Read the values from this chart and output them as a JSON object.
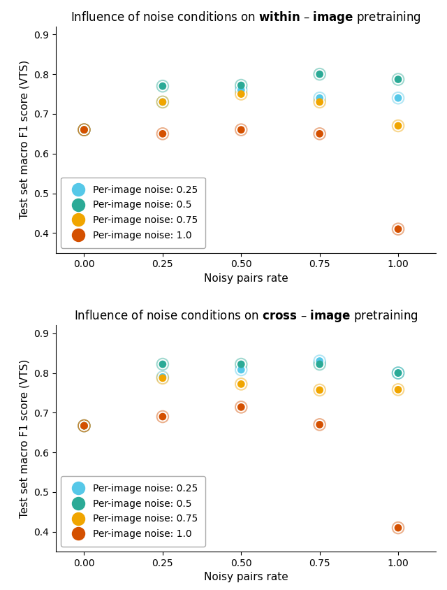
{
  "x": [
    0.0,
    0.25,
    0.5,
    0.75,
    1.0
  ],
  "within_image": {
    "blue": [
      0.66,
      0.73,
      0.76,
      0.74,
      0.74
    ],
    "green": [
      0.66,
      0.77,
      0.772,
      0.8,
      0.787
    ],
    "yellow": [
      0.66,
      0.73,
      0.75,
      0.73,
      0.67
    ],
    "orange": [
      0.66,
      0.65,
      0.66,
      0.65,
      0.41
    ]
  },
  "cross_image": {
    "blue": [
      0.667,
      0.79,
      0.808,
      0.83,
      0.8
    ],
    "green": [
      0.667,
      0.822,
      0.822,
      0.822,
      0.8
    ],
    "yellow": [
      0.667,
      0.787,
      0.772,
      0.757,
      0.758
    ],
    "orange": [
      0.667,
      0.69,
      0.714,
      0.67,
      0.41
    ]
  },
  "colors": {
    "blue": "#56c8e8",
    "green": "#2baa96",
    "yellow": "#f0a500",
    "orange": "#d45000"
  },
  "labels": {
    "blue": "Per-image noise: 0.25",
    "green": "Per-image noise: 0.5",
    "yellow": "Per-image noise: 0.75",
    "orange": "Per-image noise: 1.0"
  },
  "xlabel": "Noisy pairs rate",
  "ylabel": "Test set macro F1 score (VTS)",
  "ylim": [
    0.35,
    0.92
  ],
  "yticks": [
    0.4,
    0.5,
    0.6,
    0.7,
    0.8,
    0.9
  ],
  "xticks": [
    0.0,
    0.25,
    0.5,
    0.75,
    1.0
  ],
  "xtick_labels": [
    "0.00",
    "0.25",
    "0.50",
    "0.75",
    "1.00"
  ]
}
